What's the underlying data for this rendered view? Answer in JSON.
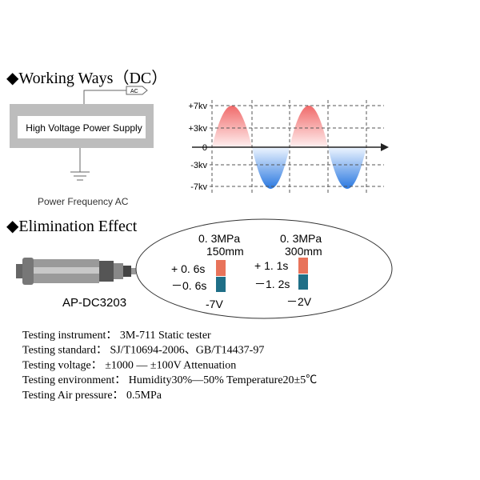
{
  "working_ways": {
    "title": "◆Working Ways（DC）",
    "ac_label": "AC",
    "power_supply": "High Voltage Power Supply",
    "ground_label": "Power Frequency AC",
    "wave_labels": [
      "+7kv",
      "+3kv",
      "0",
      "-3kv",
      "-7kv"
    ]
  },
  "elimination": {
    "title": "◆Elimination Effect",
    "device": "AP-DC3203",
    "left": {
      "pressure": "0. 3MPa",
      "distance": "150mm",
      "positive": "+ 0. 6s",
      "negative": "－0. 6s",
      "voltage": "-7V"
    },
    "right": {
      "pressure": "0. 3MPa",
      "distance": "300mm",
      "positive": "+ 1. 1s",
      "negative": "－1. 2s",
      "voltage": "－2V"
    }
  },
  "testing": [
    "Testing instrument：  3M-711 Static tester",
    "Testing standard：  SJ/T10694-2006、GB/T14437-97",
    "Testing voltage：  ±1000 — ±100V Attenuation",
    "Testing environment：  Humidity30%—50%  Temperature20±5℃",
    "Testing Air pressure：  0.5MPa"
  ]
}
